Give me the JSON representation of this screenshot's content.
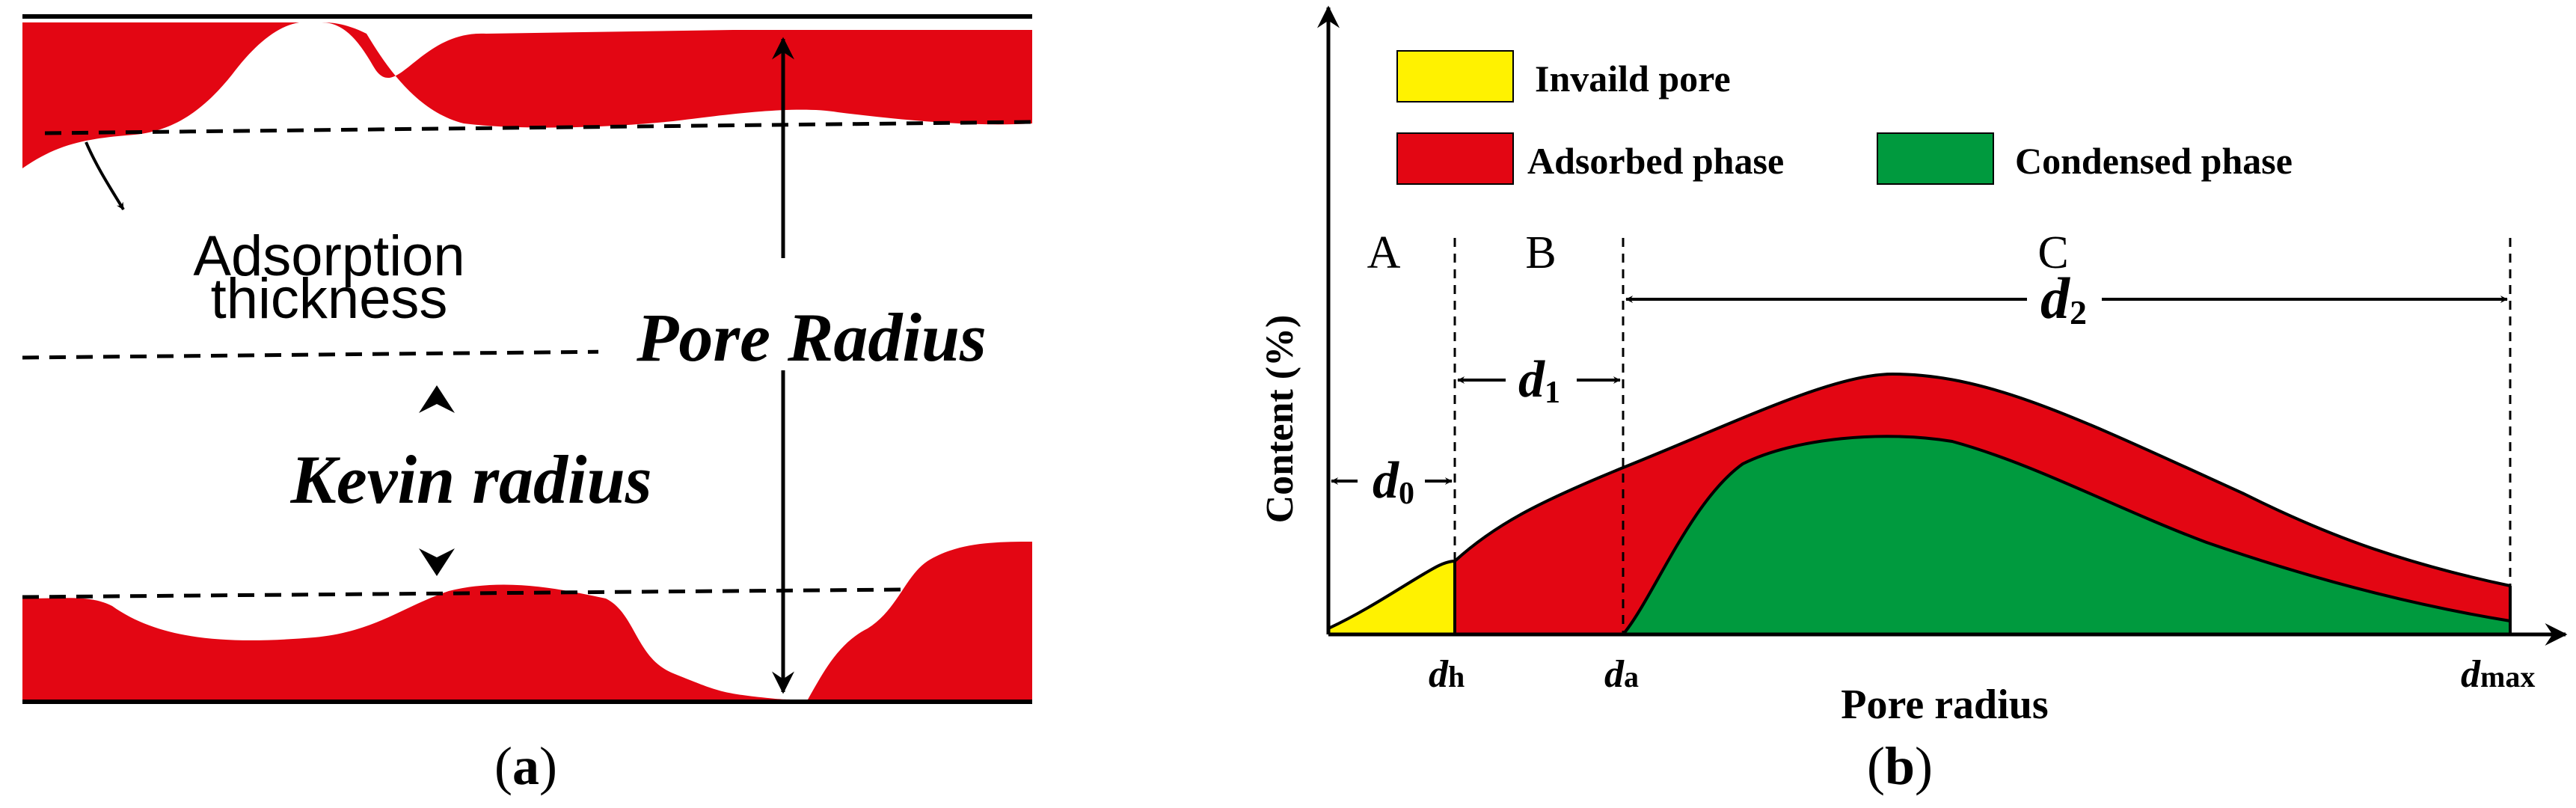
{
  "colors": {
    "adsorbed": "#e30613",
    "condensed": "#009a3e",
    "invalid": "#fff200",
    "line": "#000000"
  },
  "panel_a": {
    "caption_open": "(",
    "caption_letter": "a",
    "caption_close": ")",
    "adsorption_thickness_line1": "Adsorption",
    "adsorption_thickness_line2": "thickness",
    "pore_radius": "Pore Radius",
    "kevin_radius": "Kevin radius"
  },
  "panel_b": {
    "caption_open": "(",
    "caption_letter": "b",
    "caption_close": ")",
    "legend": [
      {
        "label": "Invaild pore",
        "color": "#fff200"
      },
      {
        "label": "Adsorbed phase",
        "color": "#e30613"
      },
      {
        "label": "Condensed phase",
        "color": "#009a3e"
      }
    ],
    "ylabel": "Content (%)",
    "xlabel": "Pore radius",
    "regions": [
      "A",
      "B",
      "C"
    ],
    "d0": {
      "main": "d",
      "sub": "0"
    },
    "d1": {
      "main": "d",
      "sub": "1"
    },
    "d2": {
      "main": "d",
      "sub": "2"
    },
    "x_ticks": [
      {
        "main": "d",
        "sub": "h"
      },
      {
        "main": "d",
        "sub": "a"
      },
      {
        "main": "d",
        "sub": "max"
      }
    ]
  }
}
